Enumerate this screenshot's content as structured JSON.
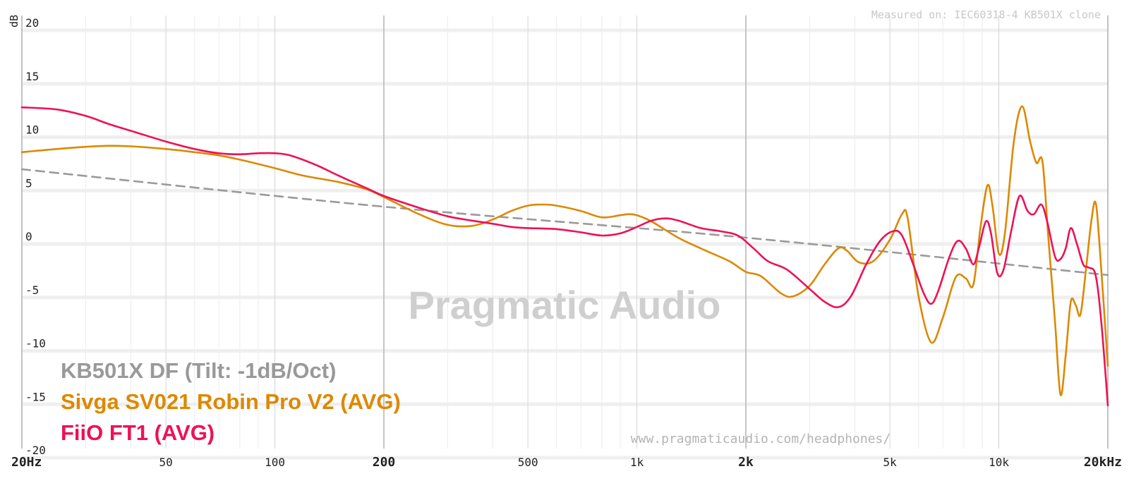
{
  "chart_data": {
    "type": "line",
    "title": "",
    "xlabel": "",
    "ylabel": "dB",
    "x_scale": "log",
    "xlim": [
      20,
      20000
    ],
    "ylim": [
      -20,
      20
    ],
    "grid": true,
    "legend_position": "bottom-left",
    "x_ticks": [
      {
        "value": 20,
        "label": "20Hz",
        "major": true
      },
      {
        "value": 50,
        "label": "50",
        "major": false
      },
      {
        "value": 100,
        "label": "100",
        "major": false
      },
      {
        "value": 200,
        "label": "200",
        "major": true
      },
      {
        "value": 500,
        "label": "500",
        "major": false
      },
      {
        "value": 1000,
        "label": "1k",
        "major": false
      },
      {
        "value": 2000,
        "label": "2k",
        "major": true
      },
      {
        "value": 5000,
        "label": "5k",
        "major": false
      },
      {
        "value": 10000,
        "label": "10k",
        "major": false
      },
      {
        "value": 20000,
        "label": "20kHz",
        "major": true
      }
    ],
    "y_ticks": [
      {
        "value": 20,
        "label": "20"
      },
      {
        "value": 15,
        "label": "15"
      },
      {
        "value": 10,
        "label": "10"
      },
      {
        "value": 5,
        "label": "5"
      },
      {
        "value": 0,
        "label": "0"
      },
      {
        "value": -5,
        "label": "-5"
      },
      {
        "value": -10,
        "label": "-10"
      },
      {
        "value": -15,
        "label": "-15"
      },
      {
        "value": -20,
        "label": "-20"
      }
    ],
    "series": [
      {
        "name": "KB501X DF (Tilt: -1dB/Oct)",
        "color": "#9a9a9a",
        "dashed": true,
        "points": [
          [
            20,
            6.4
          ],
          [
            200,
            2.9
          ],
          [
            2000,
            0.0
          ],
          [
            20000,
            -3.5
          ]
        ]
      },
      {
        "name": "Sivga SV021 Robin Pro V2 (AVG)",
        "color": "#dd8800",
        "dashed": false,
        "points": [
          [
            20,
            8.0
          ],
          [
            25,
            8.3
          ],
          [
            30,
            8.5
          ],
          [
            35,
            8.6
          ],
          [
            40,
            8.55
          ],
          [
            50,
            8.3
          ],
          [
            60,
            8.0
          ],
          [
            70,
            7.7
          ],
          [
            80,
            7.3
          ],
          [
            100,
            6.5
          ],
          [
            120,
            5.8
          ],
          [
            150,
            5.2
          ],
          [
            180,
            4.5
          ],
          [
            200,
            3.8
          ],
          [
            250,
            2.2
          ],
          [
            300,
            1.2
          ],
          [
            350,
            1.1
          ],
          [
            400,
            1.7
          ],
          [
            450,
            2.5
          ],
          [
            500,
            3.0
          ],
          [
            550,
            3.1
          ],
          [
            600,
            3.0
          ],
          [
            700,
            2.5
          ],
          [
            800,
            1.9
          ],
          [
            900,
            2.1
          ],
          [
            950,
            2.2
          ],
          [
            1000,
            2.1
          ],
          [
            1100,
            1.5
          ],
          [
            1300,
            0.0
          ],
          [
            1500,
            -1.0
          ],
          [
            1800,
            -2.2
          ],
          [
            2000,
            -3.2
          ],
          [
            2200,
            -3.6
          ],
          [
            2500,
            -5.2
          ],
          [
            2700,
            -5.5
          ],
          [
            3000,
            -4.5
          ],
          [
            3300,
            -2.5
          ],
          [
            3600,
            -1.0
          ],
          [
            3800,
            -1.2
          ],
          [
            4100,
            -2.3
          ],
          [
            4500,
            -2.2
          ],
          [
            5000,
            -0.2
          ],
          [
            5400,
            2.2
          ],
          [
            5600,
            1.8
          ],
          [
            6000,
            -5.5
          ],
          [
            6500,
            -9.8
          ],
          [
            7000,
            -7.5
          ],
          [
            7600,
            -3.7
          ],
          [
            8100,
            -3.8
          ],
          [
            8500,
            -4.4
          ],
          [
            8900,
            1.0
          ],
          [
            9300,
            4.9
          ],
          [
            9600,
            3.0
          ],
          [
            10000,
            -1.5
          ],
          [
            10400,
            0.5
          ],
          [
            11000,
            9.0
          ],
          [
            11600,
            12.3
          ],
          [
            12200,
            9.0
          ],
          [
            12700,
            7.0
          ],
          [
            13200,
            7.1
          ],
          [
            13700,
            0.0
          ],
          [
            14300,
            -8.0
          ],
          [
            14800,
            -14.7
          ],
          [
            15300,
            -11.0
          ],
          [
            15800,
            -6.0
          ],
          [
            16300,
            -6.3
          ],
          [
            16800,
            -7.2
          ],
          [
            17400,
            -3.0
          ],
          [
            18000,
            1.5
          ],
          [
            18500,
            3.3
          ],
          [
            19000,
            -1.0
          ],
          [
            20000,
            -12.0
          ]
        ]
      },
      {
        "name": "FiiO FT1 (AVG)",
        "color": "#ee1155",
        "dashed": false,
        "points": [
          [
            20,
            12.2
          ],
          [
            25,
            12.0
          ],
          [
            30,
            11.4
          ],
          [
            35,
            10.6
          ],
          [
            40,
            10.0
          ],
          [
            50,
            9.0
          ],
          [
            60,
            8.3
          ],
          [
            70,
            7.9
          ],
          [
            80,
            7.8
          ],
          [
            90,
            7.9
          ],
          [
            100,
            7.9
          ],
          [
            110,
            7.7
          ],
          [
            130,
            6.8
          ],
          [
            150,
            5.8
          ],
          [
            180,
            4.6
          ],
          [
            200,
            3.9
          ],
          [
            250,
            2.8
          ],
          [
            300,
            2.0
          ],
          [
            350,
            1.6
          ],
          [
            400,
            1.3
          ],
          [
            450,
            1.0
          ],
          [
            500,
            0.9
          ],
          [
            600,
            0.8
          ],
          [
            700,
            0.5
          ],
          [
            800,
            0.2
          ],
          [
            900,
            0.4
          ],
          [
            1000,
            1.0
          ],
          [
            1100,
            1.6
          ],
          [
            1200,
            1.8
          ],
          [
            1300,
            1.6
          ],
          [
            1500,
            0.9
          ],
          [
            1700,
            0.6
          ],
          [
            1900,
            0.2
          ],
          [
            2100,
            -1.0
          ],
          [
            2300,
            -2.2
          ],
          [
            2600,
            -3.0
          ],
          [
            3000,
            -4.8
          ],
          [
            3300,
            -6.0
          ],
          [
            3600,
            -6.5
          ],
          [
            3900,
            -5.5
          ],
          [
            4300,
            -2.5
          ],
          [
            4700,
            -0.3
          ],
          [
            5100,
            0.6
          ],
          [
            5400,
            0.2
          ],
          [
            5800,
            -2.5
          ],
          [
            6200,
            -5.2
          ],
          [
            6500,
            -6.2
          ],
          [
            6800,
            -5.0
          ],
          [
            7300,
            -1.8
          ],
          [
            7700,
            -0.3
          ],
          [
            8100,
            -1.0
          ],
          [
            8500,
            -2.5
          ],
          [
            8800,
            -1.0
          ],
          [
            9200,
            1.5
          ],
          [
            9500,
            0.5
          ],
          [
            9900,
            -3.3
          ],
          [
            10300,
            -3.0
          ],
          [
            10800,
            0.5
          ],
          [
            11400,
            3.9
          ],
          [
            12000,
            2.5
          ],
          [
            12500,
            2.2
          ],
          [
            13100,
            3.1
          ],
          [
            13600,
            1.5
          ],
          [
            14300,
            -1.8
          ],
          [
            14800,
            -2.0
          ],
          [
            15300,
            -1.0
          ],
          [
            15800,
            0.9
          ],
          [
            16400,
            -0.5
          ],
          [
            17100,
            -2.5
          ],
          [
            17700,
            -2.8
          ],
          [
            18500,
            -3.5
          ],
          [
            19200,
            -8.0
          ],
          [
            20000,
            -15.7
          ]
        ]
      }
    ]
  },
  "texts": {
    "measured_on": "Measured on: IEC60318-4 KB501X clone",
    "watermark": "Pragmatic Audio",
    "url": "www.pragmaticaudio.com/headphones/",
    "ylabel": "dB"
  }
}
